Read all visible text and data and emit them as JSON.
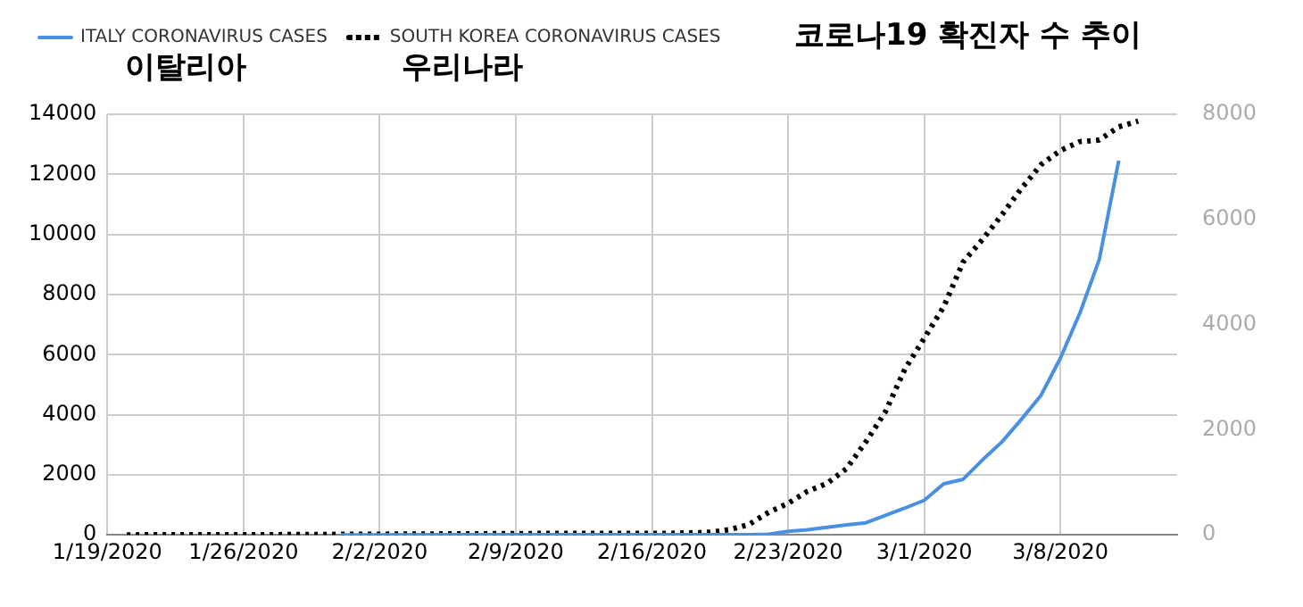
{
  "chart_data": {
    "type": "line",
    "title": "코로나19 확진자 수 추이",
    "annotations": [
      "이탈리아",
      "우리나라"
    ],
    "xlim": [
      "2020-01-19",
      "2020-03-14"
    ],
    "xticks": [
      {
        "value": "2020-01-19",
        "label": "1/19/2020"
      },
      {
        "value": "2020-01-26",
        "label": "1/26/2020"
      },
      {
        "value": "2020-02-02",
        "label": "2/2/2020"
      },
      {
        "value": "2020-02-09",
        "label": "2/9/2020"
      },
      {
        "value": "2020-02-16",
        "label": "2/16/2020"
      },
      {
        "value": "2020-02-23",
        "label": "2/23/2020"
      },
      {
        "value": "2020-03-01",
        "label": "3/1/2020"
      },
      {
        "value": "2020-03-08",
        "label": "3/8/2020"
      }
    ],
    "ylim": [
      0,
      14000
    ],
    "yticks": [
      0,
      2000,
      4000,
      6000,
      8000,
      10000,
      12000,
      14000
    ],
    "y2lim": [
      0,
      8000
    ],
    "y2ticks": [
      0,
      2000,
      4000,
      6000,
      8000
    ],
    "grid": true,
    "legend": "top left",
    "series": [
      {
        "name": "ITALY CORONAVIRUS CASES",
        "color": "#4a90e2",
        "line_style": "solid",
        "x": [
          "2020-01-31",
          "2020-02-06",
          "2020-02-21",
          "2020-02-22",
          "2020-02-23",
          "2020-02-24",
          "2020-02-25",
          "2020-02-26",
          "2020-02-27",
          "2020-02-28",
          "2020-02-29",
          "2020-03-01",
          "2020-03-02",
          "2020-03-03",
          "2020-03-04",
          "2020-03-05",
          "2020-03-06",
          "2020-03-07",
          "2020-03-08",
          "2020-03-09",
          "2020-03-10",
          "2020-03-11"
        ],
        "values": [
          2,
          3,
          3,
          20,
          120,
          170,
          250,
          330,
          400,
          650,
          890,
          1150,
          1700,
          1850,
          2500,
          3100,
          3850,
          4640,
          5880,
          7380,
          9170,
          12460
        ]
      },
      {
        "name": "SOUTH KOREA CORONAVIRUS CASES",
        "color": "#000000",
        "line_style": "dotted",
        "axis": "y2",
        "x": [
          "2020-01-20",
          "2020-01-27",
          "2020-02-03",
          "2020-02-10",
          "2020-02-17",
          "2020-02-19",
          "2020-02-20",
          "2020-02-21",
          "2020-02-22",
          "2020-02-23",
          "2020-02-24",
          "2020-02-25",
          "2020-02-26",
          "2020-02-27",
          "2020-02-28",
          "2020-02-29",
          "2020-03-01",
          "2020-03-02",
          "2020-03-03",
          "2020-03-04",
          "2020-03-05",
          "2020-03-06",
          "2020-03-07",
          "2020-03-08",
          "2020-03-09",
          "2020-03-10",
          "2020-03-11",
          "2020-03-12"
        ],
        "values": [
          1,
          4,
          15,
          27,
          30,
          50,
          100,
          200,
          430,
          600,
          830,
          980,
          1260,
          1770,
          2340,
          3150,
          3740,
          4340,
          5190,
          5620,
          6090,
          6590,
          7040,
          7310,
          7480,
          7510,
          7760,
          7870
        ]
      }
    ]
  }
}
